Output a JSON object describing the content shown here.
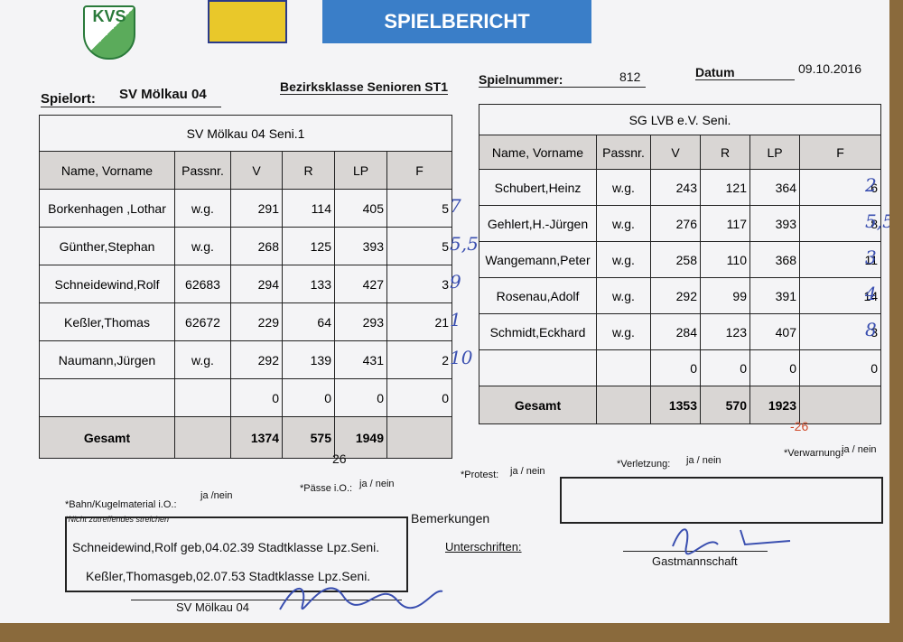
{
  "header": {
    "logo": "KVS",
    "title": "SPIELBERICHT"
  },
  "info": {
    "spielort_label": "Spielort:",
    "spielort": "SV Mölkau 04",
    "league": "Bezirksklasse Senioren ST1",
    "spielnummer_label": "Spielnummer:",
    "spielnummer": "812",
    "datum_label": "Datum",
    "datum": "09.10.2016"
  },
  "home": {
    "team": "SV Mölkau 04 Seni.1",
    "columns": [
      "Name, Vorname",
      "Passnr.",
      "V",
      "R",
      "LP",
      "F"
    ],
    "rows": [
      {
        "name": "Borkenhagen ,Lothar",
        "passnr": "w.g.",
        "v": 291,
        "r": 114,
        "lp": 405,
        "f": 5,
        "place": "7"
      },
      {
        "name": "Günther,Stephan",
        "passnr": "w.g.",
        "v": 268,
        "r": 125,
        "lp": 393,
        "f": 5,
        "place": "5,5"
      },
      {
        "name": "Schneidewind,Rolf",
        "passnr": "62683",
        "v": 294,
        "r": 133,
        "lp": 427,
        "f": 3,
        "place": "9"
      },
      {
        "name": "Keßler,Thomas",
        "passnr": "62672",
        "v": 229,
        "r": 64,
        "lp": 293,
        "f": 21,
        "place": "1"
      },
      {
        "name": "Naumann,Jürgen",
        "passnr": "w.g.",
        "v": 292,
        "r": 139,
        "lp": 431,
        "f": 2,
        "place": "10"
      },
      {
        "v": 0,
        "r": 0,
        "lp": 0,
        "f": 0
      }
    ],
    "total_label": "Gesamt",
    "total": {
      "v": 1374,
      "r": 575,
      "lp": 1949
    },
    "difference": "26"
  },
  "away": {
    "team": "SG LVB e.V. Seni.",
    "columns": [
      "Name, Vorname",
      "Passnr.",
      "V",
      "R",
      "LP",
      "F"
    ],
    "rows": [
      {
        "name": "Schubert,Heinz",
        "passnr": "w.g.",
        "v": 243,
        "r": 121,
        "lp": 364,
        "f": 6,
        "place": "2"
      },
      {
        "name": "Gehlert,H.-Jürgen",
        "passnr": "w.g.",
        "v": 276,
        "r": 117,
        "lp": 393,
        "f": 8,
        "place": "5,5"
      },
      {
        "name": "Wangemann,Peter",
        "passnr": "w.g.",
        "v": 258,
        "r": 110,
        "lp": 368,
        "f": 11,
        "place": "3"
      },
      {
        "name": "Rosenau,Adolf",
        "passnr": "w.g.",
        "v": 292,
        "r": 99,
        "lp": 391,
        "f": 14,
        "place": "4"
      },
      {
        "name": "Schmidt,Eckhard",
        "passnr": "w.g.",
        "v": 284,
        "r": 123,
        "lp": 407,
        "f": 3,
        "place": "8"
      },
      {
        "v": 0,
        "r": 0,
        "lp": 0,
        "f": 0
      }
    ],
    "total_label": "Gesamt",
    "total": {
      "v": 1353,
      "r": 570,
      "lp": 1923
    },
    "difference": "-26"
  },
  "footer": {
    "material_label": "*Bahn/Kugelmaterial i.O.:",
    "material_choice": "ja /nein",
    "paesse_label": "*Pässe i.O.:",
    "paesse_choice": "ja / nein",
    "protest_label": "*Protest:",
    "protest_choice": "ja / nein",
    "verletzung_label": "*Verletzung:",
    "verletzung_choice": "ja / nein",
    "verwarnung_label": "*Verwarnung:",
    "verwarnung_choice": "ja / nein",
    "note": "*Nicht zutreffendes streichen",
    "remarks_label": "Bemerkungen",
    "remarks": [
      "Schneidewind,Rolf geb,04.02.39 Stadtklasse Lpz.Seni.",
      "Keßler,Thomasgeb,02.07.53 Stadtklasse Lpz.Seni."
    ],
    "signatures_label": "Unterschriften:",
    "guest_label": "Gastmannschaft",
    "home_label": "SV Mölkau 04"
  }
}
